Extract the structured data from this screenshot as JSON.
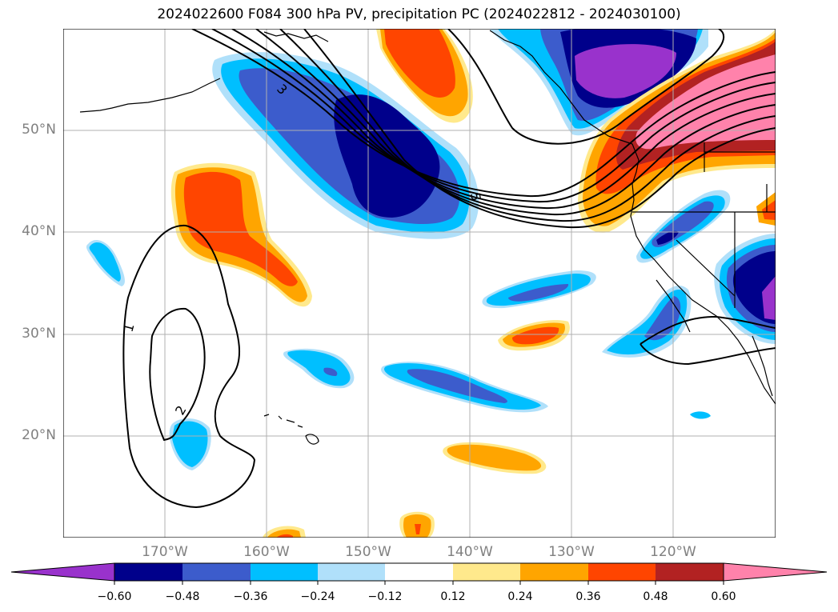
{
  "title": "2024022600 F084 300 hPa PV, precipitation PC (2024022812 - 2024030100)",
  "map": {
    "lat_labels": [
      "50°N",
      "40°N",
      "30°N",
      "20°N"
    ],
    "lon_labels": [
      "170°W",
      "160°W",
      "150°W",
      "140°W",
      "130°W",
      "120°W"
    ],
    "contour_labels": [
      "1",
      "2",
      "3",
      "5"
    ]
  },
  "colorbar": {
    "ticks": [
      "−0.60",
      "−0.48",
      "−0.36",
      "−0.24",
      "−0.12",
      "0.12",
      "0.24",
      "0.36",
      "0.48",
      "0.60"
    ],
    "colors": [
      "#9932cc",
      "#00008b",
      "#3c5ccc",
      "#00bfff",
      "#b0e0fa",
      "#ffffff",
      "#ffe98c",
      "#ffa500",
      "#ff4500",
      "#b22222",
      "#ff82ab"
    ]
  }
}
